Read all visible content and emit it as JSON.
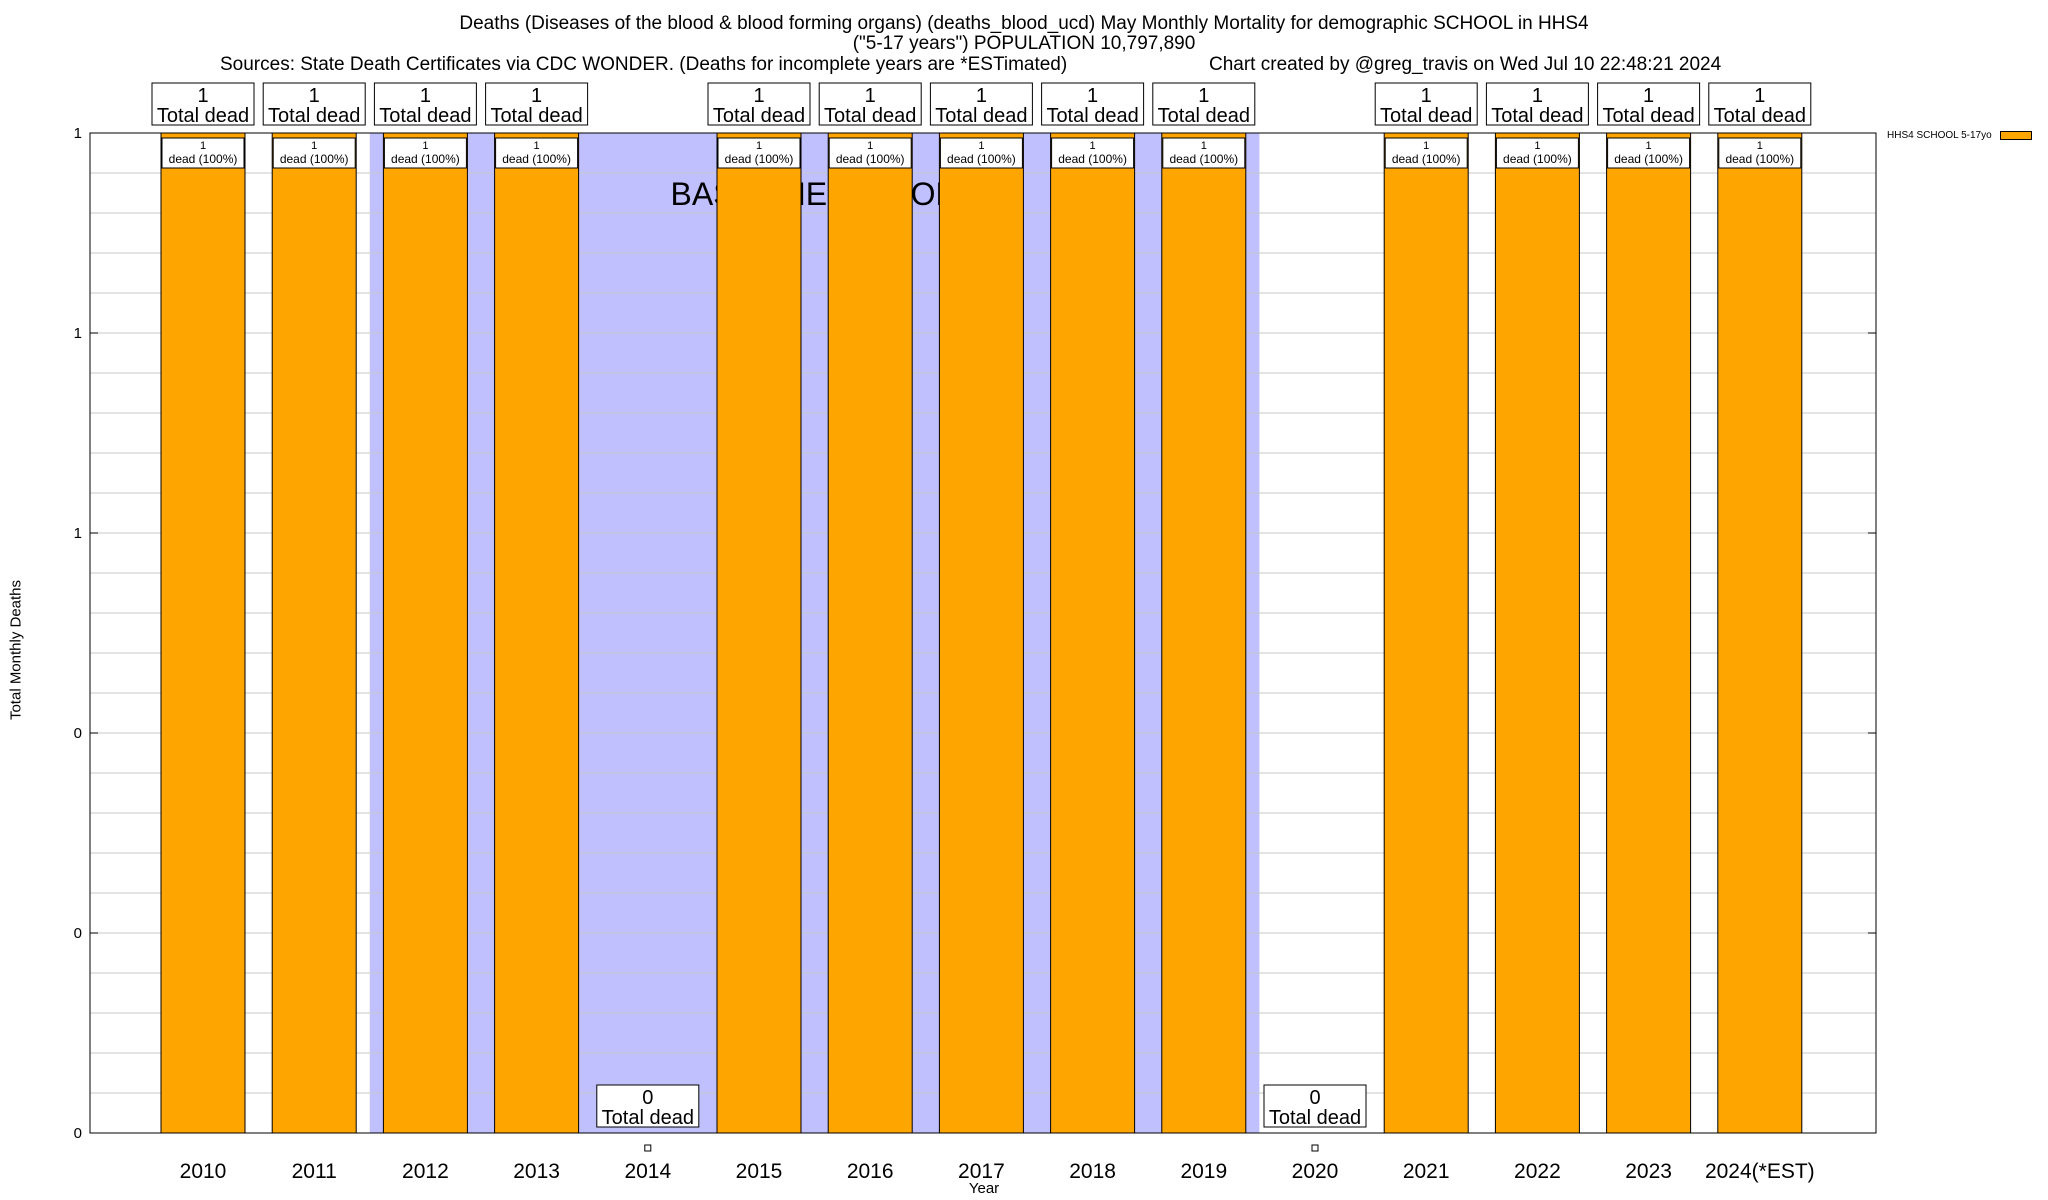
{
  "header": {
    "title_line1": "Deaths (Diseases of the blood & blood forming organs) (deaths_blood_ucd) May Monthly Mortality for demographic SCHOOL in HHS4",
    "title_line2": "(\"5-17 years\") POPULATION 10,797,890",
    "sources": "Sources: State Death Certificates via CDC WONDER. (Deaths for incomplete years are *ESTimated)",
    "credit": "Chart created by @greg_travis on Wed Jul 10 22:48:21 2024"
  },
  "chart_data": {
    "type": "bar",
    "categories": [
      "2010",
      "2011",
      "2012",
      "2013",
      "2014",
      "2015",
      "2016",
      "2017",
      "2018",
      "2019",
      "2020",
      "2021",
      "2022",
      "2023",
      "2024(*EST)"
    ],
    "series": [
      {
        "name": "HHS4 SCHOOL 5-17yo",
        "values": [
          1,
          1,
          1,
          1,
          0,
          1,
          1,
          1,
          1,
          1,
          0,
          1,
          1,
          1,
          1
        ]
      }
    ],
    "total_labels": [
      "1\nTotal dead",
      "1\nTotal dead",
      "1\nTotal dead",
      "1\nTotal dead",
      "0\nTotal dead",
      "1\nTotal dead",
      "1\nTotal dead",
      "1\nTotal dead",
      "1\nTotal dead",
      "1\nTotal dead",
      "0\nTotal dead",
      "1\nTotal dead",
      "1\nTotal dead",
      "1\nTotal dead",
      "1\nTotal dead"
    ],
    "bar_labels": [
      "1\ndead (100%)",
      "1\ndead (100%)",
      "1\ndead (100%)",
      "1\ndead (100%)",
      "",
      "1\ndead (100%)",
      "1\ndead (100%)",
      "1\ndead (100%)",
      "1\ndead (100%)",
      "1\ndead (100%)",
      "",
      "1\ndead (100%)",
      "1\ndead (100%)",
      "1\ndead (100%)",
      "1\ndead (100%)"
    ],
    "xlabel": "Year",
    "ylabel": "Total Monthly Deaths",
    "ylim": [
      0,
      1
    ],
    "yticks": [
      0,
      0.2,
      0.4,
      0.6,
      0.8,
      1
    ],
    "ytick_labels": [
      "0",
      "0",
      "0",
      "1",
      "1",
      "1"
    ],
    "grid": true,
    "baseline_period": {
      "label": "BASELINE PERIOD",
      "from": "2012",
      "to": "2019"
    },
    "legend_position": "top-right",
    "colors": {
      "bar": "#ffa500",
      "baseline": "#c0c0ff",
      "grid": "#c8c8c8"
    }
  }
}
